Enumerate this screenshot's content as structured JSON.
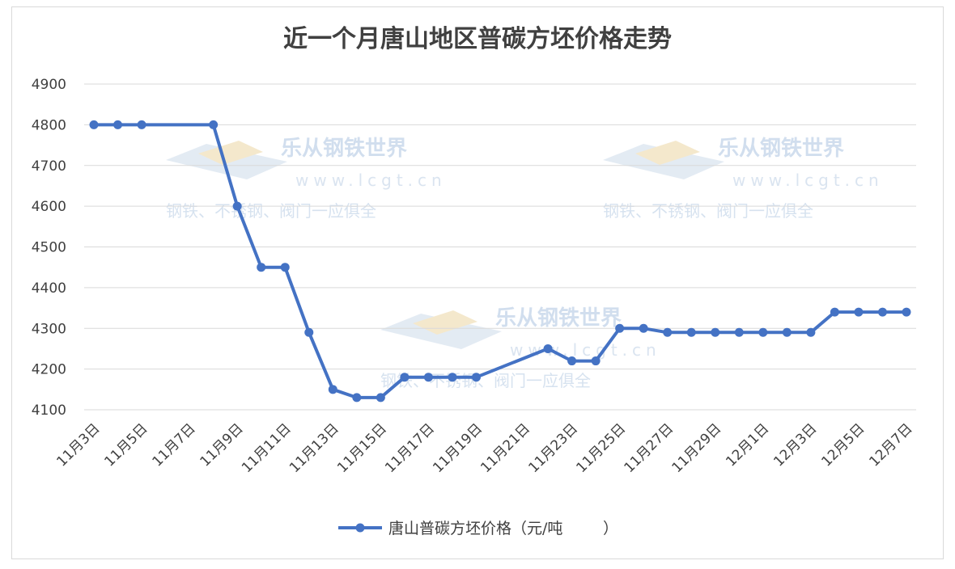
{
  "chart_data": {
    "type": "line",
    "title": "近一个月唐山地区普碳方坯价格走势",
    "xlabel": "",
    "ylabel": "",
    "ylim": [
      4100,
      4900
    ],
    "yticks": [
      4100,
      4200,
      4300,
      4400,
      4500,
      4600,
      4700,
      4800,
      4900
    ],
    "xlim": [
      0,
      34
    ],
    "xtick_positions": [
      0,
      2,
      4,
      6,
      8,
      10,
      12,
      14,
      16,
      18,
      20,
      22,
      24,
      26,
      28,
      30,
      32,
      34
    ],
    "xtick_labels": [
      "11月3日",
      "11月5日",
      "11月7日",
      "11月9日",
      "11月11日",
      "11月13日",
      "11月15日",
      "11月17日",
      "11月19日",
      "11月21日",
      "11月23日",
      "11月25日",
      "11月27日",
      "11月29日",
      "12月1日",
      "12月3日",
      "12月5日",
      "12月7日"
    ],
    "grid": true,
    "legend_position": "bottom",
    "series": [
      {
        "name": "唐山普碳方坯价格（元/吨",
        "color": "#4472c4",
        "marker": "circle",
        "points": [
          [
            0,
            4800
          ],
          [
            1,
            4800
          ],
          [
            2,
            4800
          ],
          [
            5,
            4800
          ],
          [
            6,
            4600
          ],
          [
            7,
            4450
          ],
          [
            8,
            4450
          ],
          [
            9,
            4290
          ],
          [
            10,
            4150
          ],
          [
            11,
            4130
          ],
          [
            12,
            4130
          ],
          [
            13,
            4180
          ],
          [
            14,
            4180
          ],
          [
            15,
            4180
          ],
          [
            16,
            4180
          ],
          [
            19,
            4250
          ],
          [
            20,
            4220
          ],
          [
            21,
            4220
          ],
          [
            22,
            4300
          ],
          [
            23,
            4300
          ],
          [
            24,
            4290
          ],
          [
            25,
            4290
          ],
          [
            26,
            4290
          ],
          [
            27,
            4290
          ],
          [
            28,
            4290
          ],
          [
            29,
            4290
          ],
          [
            30,
            4290
          ],
          [
            31,
            4340
          ],
          [
            32,
            4340
          ],
          [
            33,
            4340
          ],
          [
            34,
            4340
          ]
        ]
      }
    ]
  },
  "watermarks": [
    {
      "brand": "乐从钢铁世界",
      "site": "www.lcgt.cn",
      "tagline": "钢铁、不锈钢、阀门一应俱全"
    },
    {
      "brand": "乐从钢铁世界",
      "site": "www.lcgt.cn",
      "tagline": "钢铁、不锈钢、阀门一应俱全"
    },
    {
      "brand": "乐从钢铁世界",
      "site": "www.lcgt.cn",
      "tagline": "钢铁、不锈钢、阀门一应俱全"
    }
  ]
}
